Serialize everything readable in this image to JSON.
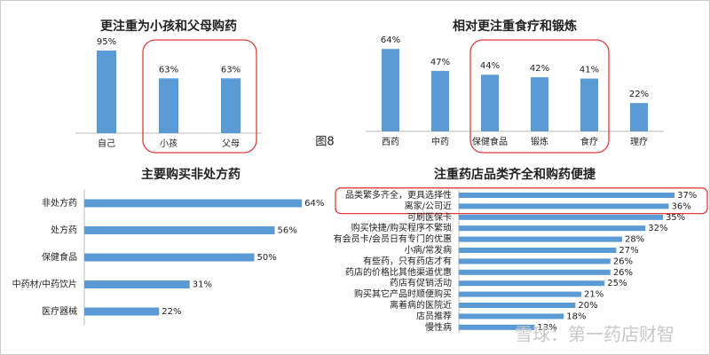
{
  "figure_label": "图8",
  "watermark": "雪球：第一药店财智",
  "chart_data": [
    {
      "type": "bar",
      "title": "更注重为小孩和父母购药",
      "categories": [
        "自己",
        "小孩",
        "父母"
      ],
      "values": [
        95,
        63,
        63
      ],
      "value_labels": [
        "95%",
        "63%",
        "63%"
      ],
      "color": "#5b9bd5",
      "highlight": {
        "from": 1,
        "to": 2,
        "color": "#e03c3c"
      }
    },
    {
      "type": "bar",
      "title": "相对更注重食疗和锻炼",
      "categories": [
        "西药",
        "中药",
        "保健食品",
        "锻炼",
        "食疗",
        "理疗"
      ],
      "values": [
        64,
        47,
        44,
        42,
        41,
        22
      ],
      "value_labels": [
        "64%",
        "47%",
        "44%",
        "42%",
        "41%",
        "22%"
      ],
      "color": "#5b9bd5",
      "highlight": {
        "from": 2,
        "to": 4,
        "color": "#e03c3c"
      }
    },
    {
      "type": "barh",
      "title": "主要购买非处方药",
      "categories": [
        "非处方药",
        "处方药",
        "保健食品",
        "中药材/中药饮片",
        "医疗器械"
      ],
      "values": [
        64,
        56,
        50,
        31,
        22
      ],
      "value_labels": [
        "64%",
        "56%",
        "50%",
        "31%",
        "22%"
      ],
      "color": "#5b9bd5"
    },
    {
      "type": "barh",
      "title": "注重药店品类齐全和购药便捷",
      "categories": [
        "品类繁多齐全，更具选择性",
        "离家/公司近",
        "可刷医保卡",
        "购买快捷/购买程序不繁琐",
        "有会员卡/会员日有专门的优惠",
        "小病/常发病",
        "有些药，只有药店才有",
        "药店的价格比其他渠道优惠",
        "药店有促销活动",
        "购买其它产品时顺便购买",
        "离着病的医院近",
        "店员推荐",
        "慢性病"
      ],
      "values": [
        37,
        36,
        35,
        32,
        28,
        27,
        26,
        26,
        25,
        21,
        20,
        18,
        13
      ],
      "value_labels": [
        "37%",
        "36%",
        "35%",
        "32%",
        "28%",
        "27%",
        "26%",
        "26%",
        "25%",
        "21%",
        "20%",
        "18%",
        "13%"
      ],
      "color": "#5b9bd5",
      "highlight": {
        "from": 0,
        "to": 1,
        "color": "#e03c3c"
      }
    }
  ]
}
